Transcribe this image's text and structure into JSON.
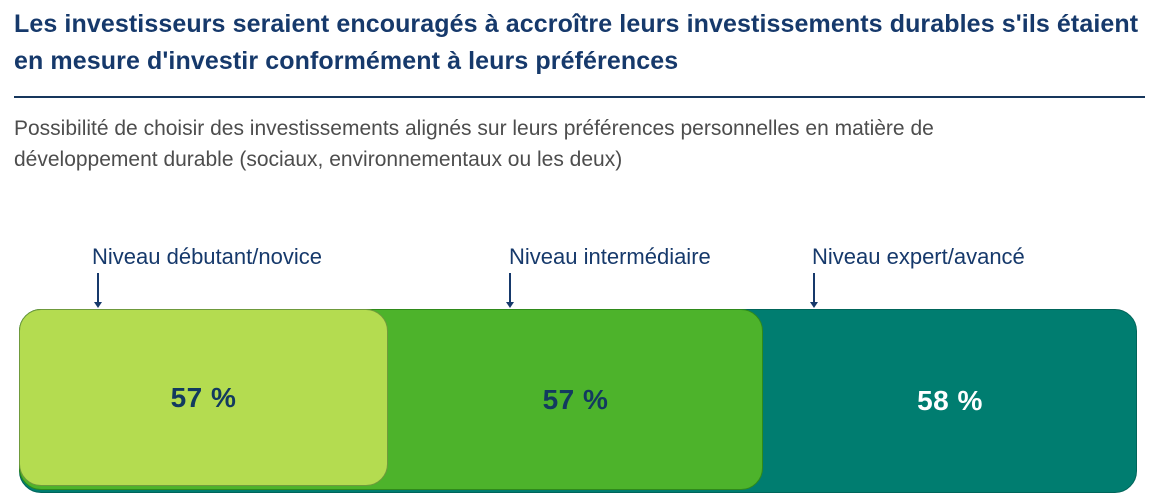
{
  "chart_data": {
    "type": "bar",
    "variant": "horizontal-overlapping-rounded-segments",
    "title": "Les investisseurs seraient encouragés à accroître leurs investissements durables s'ils étaient en mesure d'investir conformément à leurs préférences",
    "subtitle": "Possibilité de choisir des investissements alignés sur leurs préférences personnelles en matière de développement durable (sociaux, environnementaux ou les deux)",
    "categories": [
      "Niveau débutant/novice",
      "Niveau intermédiaire",
      "Niveau expert/avancé"
    ],
    "values": [
      57,
      57,
      58
    ],
    "unit": "%",
    "legend": "none",
    "axes": "none",
    "segments": [
      {
        "category": "Niveau débutant/novice",
        "value": 57,
        "value_label": "57 %",
        "fill": "#b4dc50",
        "border": "#6f9a3c",
        "text_color": "#123a5f"
      },
      {
        "category": "Niveau intermédiaire",
        "value": 57,
        "value_label": "57 %",
        "fill": "#4db32b",
        "border": "#2f8a1a",
        "text_color": "#123a5f"
      },
      {
        "category": "Niveau expert/avancé",
        "value": 58,
        "value_label": "58 %",
        "fill": "#007d70",
        "border": "#00655a",
        "text_color": "#ffffff"
      }
    ]
  },
  "colors": {
    "title": "#16396b",
    "subtitle": "#4d4d4d",
    "divider": "#16365c",
    "pointer": "#16396b",
    "background": "#ffffff"
  }
}
